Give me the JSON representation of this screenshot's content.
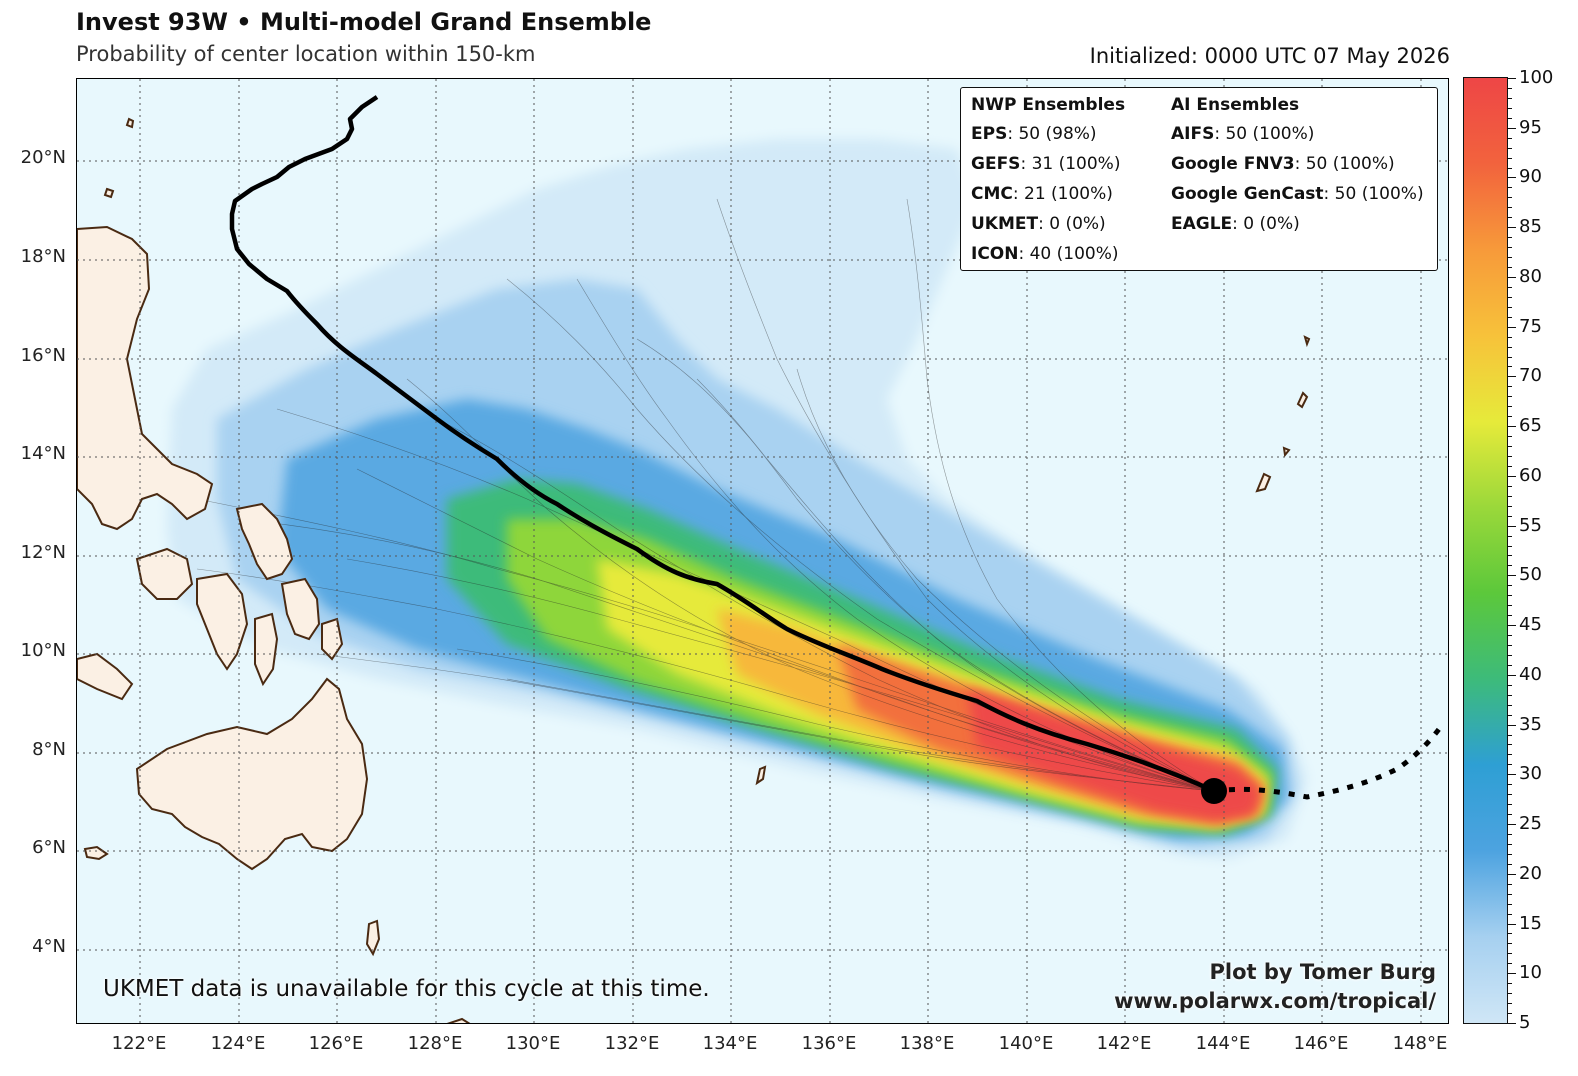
{
  "header": {
    "title": "Invest 93W • Multi-model Grand Ensemble",
    "subtitle": "Probability of center location within 150-km",
    "initialized": "Initialized: 0000 UTC 07 May 2026"
  },
  "legend": {
    "nwp_header": "NWP Ensembles",
    "ai_header": "AI Ensembles",
    "nwp": [
      {
        "name": "EPS",
        "value": ": 50 (98%)"
      },
      {
        "name": "GEFS",
        "value": ": 31 (100%)"
      },
      {
        "name": "CMC",
        "value": ": 21 (100%)"
      },
      {
        "name": "UKMET",
        "value": ": 0 (0%)"
      },
      {
        "name": "ICON",
        "value": ": 40 (100%)"
      }
    ],
    "ai": [
      {
        "name": "AIFS",
        "value": ": 50 (100%)"
      },
      {
        "name": "Google FNV3",
        "value": ": 50 (100%)"
      },
      {
        "name": "Google GenCast",
        "value": ": 50 (100%)"
      },
      {
        "name": "EAGLE",
        "value": ": 0 (0%)"
      }
    ]
  },
  "note": "UKMET data is unavailable for this cycle at this time.",
  "credit": {
    "line1": "Plot by Tomer Burg",
    "line2": "www.polarwx.com/tropical/"
  },
  "axes": {
    "lat_labels": [
      "20°N",
      "18°N",
      "16°N",
      "14°N",
      "12°N",
      "10°N",
      "8°N",
      "6°N",
      "4°N"
    ],
    "lon_labels": [
      "122°E",
      "124°E",
      "126°E",
      "128°E",
      "130°E",
      "132°E",
      "134°E",
      "136°E",
      "138°E",
      "140°E",
      "142°E",
      "144°E",
      "146°E",
      "148°E"
    ]
  },
  "colorbar": {
    "labels": [
      "100",
      "95",
      "90",
      "85",
      "80",
      "75",
      "70",
      "65",
      "60",
      "55",
      "50",
      "45",
      "40",
      "35",
      "30",
      "25",
      "20",
      "15",
      "10",
      "5"
    ],
    "min": 5,
    "max": 100,
    "colors": [
      "#cfe6f6",
      "#a6d0f0",
      "#4da3e0",
      "#2e9fd4",
      "#3dbb7a",
      "#5cc83b",
      "#9ad83a",
      "#e6ea3a",
      "#f7c23a",
      "#f79a3a",
      "#f2633d",
      "#ee4646"
    ]
  },
  "track": {
    "mean_track_color": "#000000",
    "past_track_style": "dotted",
    "current_position": "144°E 7.2°N"
  },
  "colors": {
    "ocean": "#e8f8fd",
    "land": "#fbf0e4",
    "coastline": "#4a2a12",
    "grid": "#555555"
  }
}
